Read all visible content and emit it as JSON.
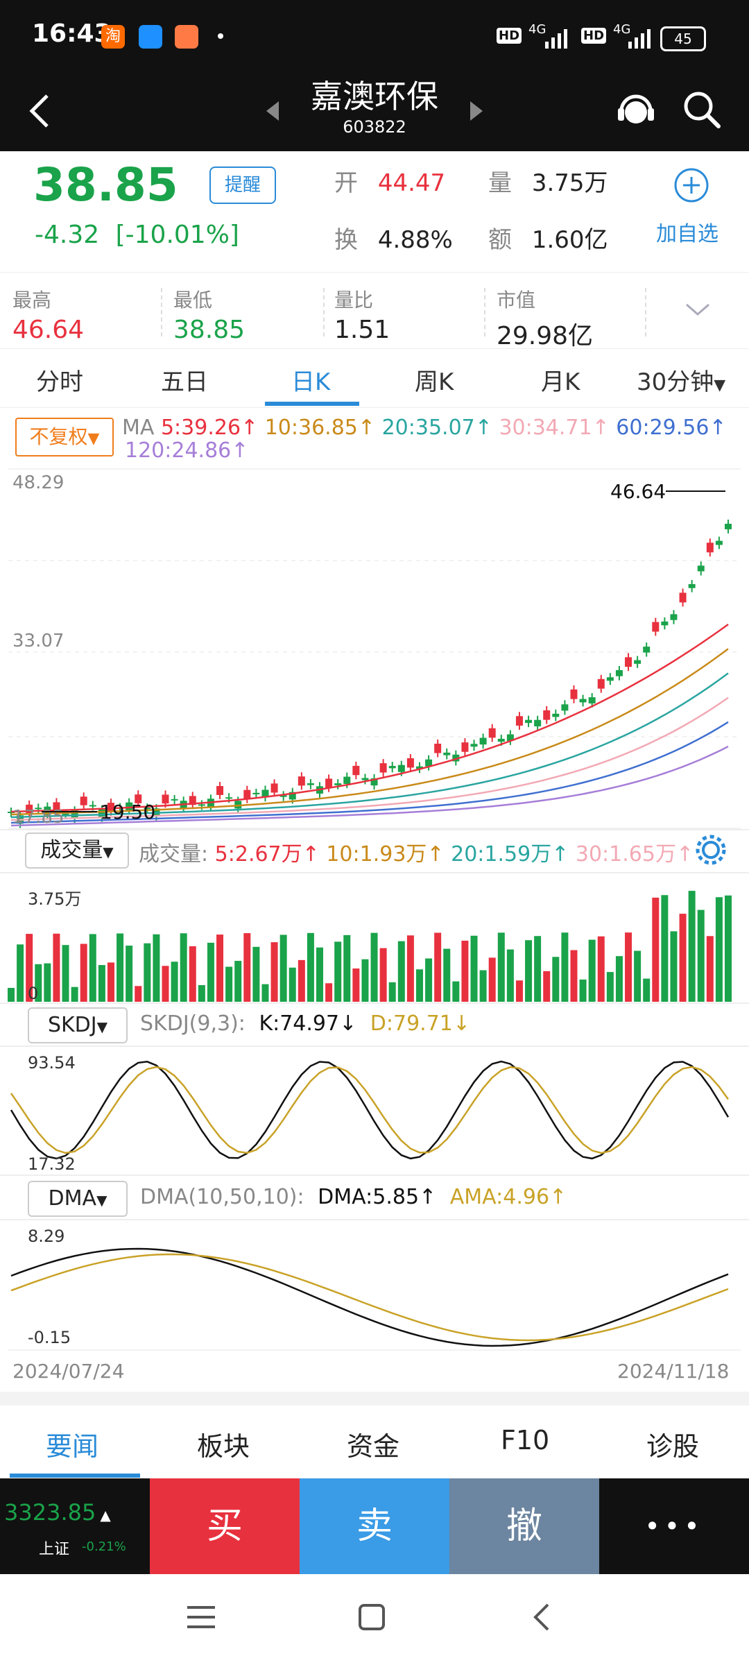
{
  "status_bar": {
    "time": "16:43",
    "battery": "45",
    "net1": "4G",
    "net2": "4G",
    "hd1": "HD",
    "hd2": "HD",
    "icon_taobao_text": "淘"
  },
  "header": {
    "title": "嘉澳环保",
    "code": "603822"
  },
  "quote": {
    "price": "38.85",
    "change": "-4.32",
    "change_pct": "[-10.01%]",
    "remind_label": "提醒",
    "open_label": "开",
    "open_value": "44.47",
    "vol_label": "量",
    "vol_value": "3.75万",
    "turnover_label": "换",
    "turnover_value": "4.88%",
    "amount_label": "额",
    "amount_value": "1.60亿",
    "add_watch_label": "加自选"
  },
  "stats": [
    {
      "label": "最高",
      "value": "46.64",
      "color": "#e8313e"
    },
    {
      "label": "最低",
      "value": "38.85",
      "color": "#1aa34a"
    },
    {
      "label": "量比",
      "value": "1.51",
      "color": "#222222"
    },
    {
      "label": "市值",
      "value": "29.98亿",
      "color": "#222222"
    }
  ],
  "tabs": [
    "分时",
    "五日",
    "日K",
    "周K",
    "月K",
    "30分钟"
  ],
  "ma_bar": {
    "adjust_label": "不复权",
    "ma_label": "MA",
    "ma5": "5:39.26↑",
    "ma10": "10:36.85↑",
    "ma20": "20:35.07↑",
    "ma30": "30:34.71↑",
    "ma60": "60:29.56↑",
    "ma120": "120:24.86↑"
  },
  "kline": {
    "y_high": "48.29",
    "y_mid": "33.07",
    "y_low": "17.85",
    "max_mark": "46.64",
    "min_mark": "19.50"
  },
  "volume_panel": {
    "selector": "成交量",
    "label": "成交量:",
    "v5": "5:2.67万↑",
    "v10": "10:1.93万↑",
    "v20": "20:1.59万↑",
    "v30": "30:1.65万↑",
    "y_top": "3.75万",
    "y_zero": "0"
  },
  "skdj_panel": {
    "selector": "SKDJ",
    "params": "SKDJ(9,3):",
    "k": "K:74.97↓",
    "d": "D:79.71↓",
    "y_top": "93.54",
    "y_bottom": "17.32"
  },
  "dma_panel": {
    "selector": "DMA",
    "params": "DMA(10,50,10):",
    "dma": "DMA:5.85↑",
    "ama": "AMA:4.96↑",
    "y_top": "8.29",
    "y_bottom": "-0.15",
    "date_start": "2024/07/24",
    "date_end": "2024/11/18"
  },
  "bottom_tabs": [
    "要闻",
    "板块",
    "资金",
    "F10",
    "诊股"
  ],
  "index_quote": {
    "value": "3323.85",
    "name": "上证",
    "pct": "-0.21%"
  },
  "actions": {
    "buy": "买",
    "sell": "卖",
    "cancel": "撤",
    "more": "•••"
  },
  "colors": {
    "up": "#e8313e",
    "down": "#1aa34a",
    "accent": "#2a8bd8",
    "ma5": "#e8313e",
    "ma10": "#c98a1a",
    "ma20": "#2aa5a0",
    "ma30": "#f2a9b4",
    "ma60": "#3f6fd0",
    "ma120": "#a67ed8"
  }
}
